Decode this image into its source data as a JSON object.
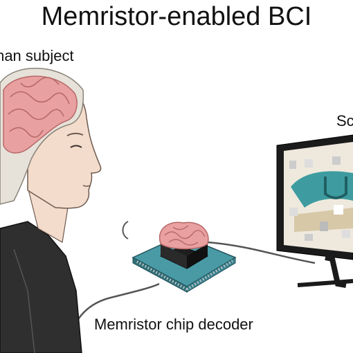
{
  "title": "Memristor-enabled BCI",
  "labels": {
    "human": "man subject",
    "screen": "Sc",
    "chip": "Memristor chip decoder"
  },
  "colors": {
    "brain": "#e8a0a0",
    "brain_dark": "#b86868",
    "skin": "#f3dccb",
    "cap": "#e6e2da",
    "shirt": "#2f2f2f",
    "chip_board": "#4a9aa6",
    "chip_core": "#1e1e1e",
    "monitor": "#1b1b1b",
    "display_teal": "#3e9ca0",
    "cable": "#555555"
  }
}
